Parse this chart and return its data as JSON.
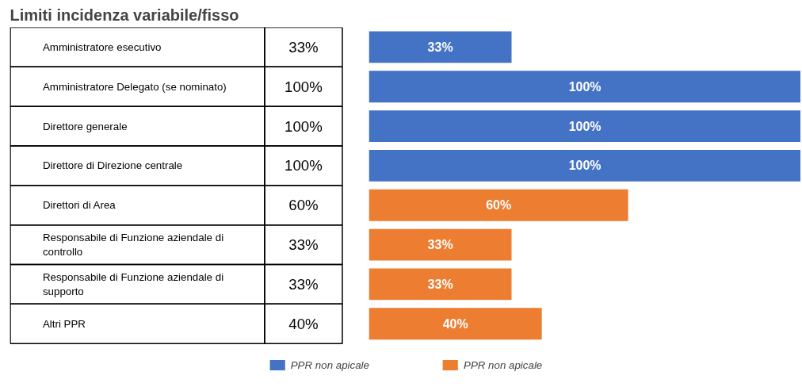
{
  "chart_data": {
    "type": "bar",
    "orientation": "horizontal",
    "title": "Limiti incidenza variabile/fisso",
    "categories": [
      "Amministratore esecutivo",
      "Amministratore Delegato (se nominato)",
      "Direttore generale",
      "Direttore di Direzione centrale",
      "Direttori di Area",
      "Responsabile di Funzione aziendale di\ncontrollo",
      "Responsabile di Funzione aziendale di\nsupporto",
      "Altri PPR"
    ],
    "series": [
      {
        "name": "PPR non apicale",
        "color": "#4472c4",
        "values": [
          33,
          100,
          100,
          100,
          null,
          null,
          null,
          null
        ],
        "value_labels": [
          "33%",
          "100%",
          "100%",
          "100%",
          null,
          null,
          null,
          null
        ]
      },
      {
        "name": "PPR non apicale",
        "color": "#ed7d31",
        "values": [
          null,
          null,
          null,
          null,
          60,
          33,
          33,
          40
        ],
        "value_labels": [
          null,
          null,
          null,
          null,
          "60%",
          "33%",
          "33%",
          "40%"
        ]
      }
    ],
    "legend": "bottom"
  }
}
